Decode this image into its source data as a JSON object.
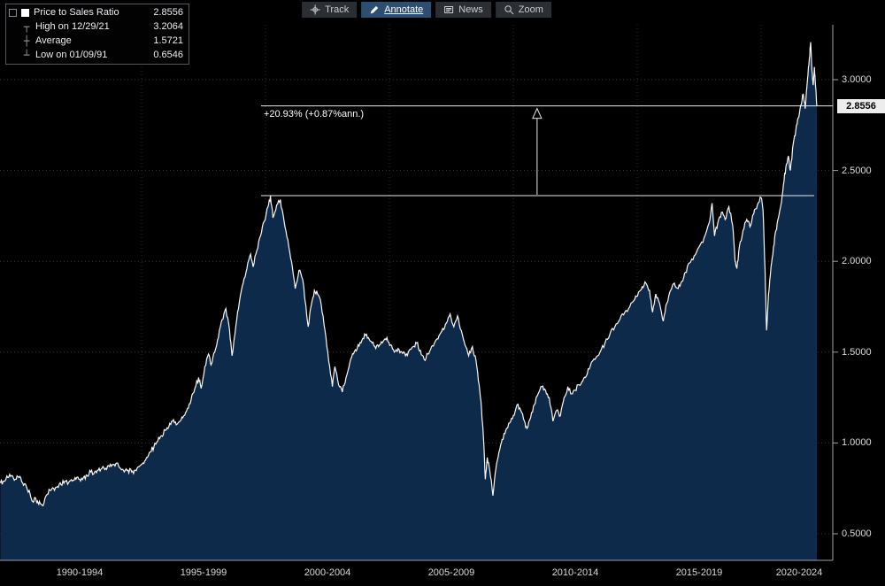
{
  "toolbar": {
    "buttons": [
      {
        "label": "Track"
      },
      {
        "label": "Annotate",
        "selected": true
      },
      {
        "label": "News"
      },
      {
        "label": "Zoom"
      }
    ]
  },
  "legend": {
    "rows": [
      {
        "marker": "swatch",
        "label": "Price to Sales Ratio",
        "value": "2.8556"
      },
      {
        "marker": "┬",
        "label": "High on 12/29/21",
        "value": "3.2064"
      },
      {
        "marker": "┼",
        "label": "Average",
        "value": "1.5721"
      },
      {
        "marker": "┴",
        "label": "Low on 01/09/91",
        "value": "0.6546"
      }
    ]
  },
  "chart_data": {
    "type": "area",
    "title": "Price to Sales Ratio",
    "series_name": "Price to Sales Ratio",
    "last": 2.8556,
    "last_label": "2.8556",
    "high": {
      "date": "12/29/21",
      "value": 3.2064
    },
    "average": 1.5721,
    "low": {
      "date": "01/09/91",
      "value": 0.6546
    },
    "xlabel": "",
    "ylabel": "",
    "grid": "dotted",
    "legend_position": "top-left",
    "ylim": [
      0.5,
      3.0
    ],
    "yticks": [
      0.5,
      1.0,
      1.5,
      2.0,
      2.5,
      3.0
    ],
    "ytick_labels": [
      "0.5000",
      "1.0000",
      "1.5000",
      "2.0000",
      "2.5000",
      "3.0000"
    ],
    "xtick_labels": [
      "1990-1994",
      "1995-1999",
      "2000-2004",
      "2005-2009",
      "2010-2014",
      "2015-2019",
      "2020-2024"
    ],
    "xtick_centers": [
      1992.5,
      1997.5,
      2002.5,
      2007.5,
      2012.5,
      2017.5,
      2022.5
    ],
    "vgrid_years": [
      1995,
      2000,
      2005,
      2010,
      2015,
      2020
    ],
    "annotation": {
      "text": "+20.93% (+0.87%ann.)",
      "from_value": 2.3614,
      "to_value": 2.8556,
      "line_start_year": 1999.82,
      "top_line_end_year": 2022.89,
      "bottom_line_end_year": 2022.14,
      "arrow_year": 2010.96
    },
    "points": [
      [
        1989.3,
        0.78
      ],
      [
        1989.45,
        0.79
      ],
      [
        1989.6,
        0.81
      ],
      [
        1989.75,
        0.82
      ],
      [
        1989.9,
        0.8
      ],
      [
        1990.05,
        0.81
      ],
      [
        1990.2,
        0.78
      ],
      [
        1990.35,
        0.76
      ],
      [
        1990.5,
        0.72
      ],
      [
        1990.6,
        0.68
      ],
      [
        1990.7,
        0.7
      ],
      [
        1990.8,
        0.68
      ],
      [
        1990.9,
        0.67
      ],
      [
        1991.03,
        0.655
      ],
      [
        1991.15,
        0.71
      ],
      [
        1991.3,
        0.74
      ],
      [
        1991.45,
        0.75
      ],
      [
        1991.6,
        0.76
      ],
      [
        1991.75,
        0.77
      ],
      [
        1991.9,
        0.79
      ],
      [
        1992.05,
        0.78
      ],
      [
        1992.2,
        0.79
      ],
      [
        1992.35,
        0.8
      ],
      [
        1992.5,
        0.8
      ],
      [
        1992.65,
        0.81
      ],
      [
        1992.8,
        0.82
      ],
      [
        1992.95,
        0.84
      ],
      [
        1993.1,
        0.84
      ],
      [
        1993.25,
        0.85
      ],
      [
        1993.4,
        0.86
      ],
      [
        1993.55,
        0.86
      ],
      [
        1993.7,
        0.87
      ],
      [
        1993.85,
        0.88
      ],
      [
        1994.0,
        0.89
      ],
      [
        1994.15,
        0.86
      ],
      [
        1994.3,
        0.84
      ],
      [
        1994.45,
        0.85
      ],
      [
        1994.6,
        0.84
      ],
      [
        1994.75,
        0.85
      ],
      [
        1994.9,
        0.87
      ],
      [
        1995.05,
        0.89
      ],
      [
        1995.2,
        0.92
      ],
      [
        1995.35,
        0.95
      ],
      [
        1995.5,
        0.98
      ],
      [
        1995.65,
        1.01
      ],
      [
        1995.8,
        1.04
      ],
      [
        1995.95,
        1.07
      ],
      [
        1996.1,
        1.09
      ],
      [
        1996.25,
        1.12
      ],
      [
        1996.4,
        1.1
      ],
      [
        1996.55,
        1.12
      ],
      [
        1996.7,
        1.15
      ],
      [
        1996.85,
        1.19
      ],
      [
        1997.0,
        1.24
      ],
      [
        1997.15,
        1.3
      ],
      [
        1997.3,
        1.36
      ],
      [
        1997.4,
        1.3
      ],
      [
        1997.55,
        1.42
      ],
      [
        1997.7,
        1.49
      ],
      [
        1997.8,
        1.43
      ],
      [
        1997.95,
        1.5
      ],
      [
        1998.1,
        1.58
      ],
      [
        1998.25,
        1.68
      ],
      [
        1998.4,
        1.74
      ],
      [
        1998.55,
        1.62
      ],
      [
        1998.65,
        1.48
      ],
      [
        1998.8,
        1.64
      ],
      [
        1998.95,
        1.78
      ],
      [
        1999.1,
        1.88
      ],
      [
        1999.25,
        1.96
      ],
      [
        1999.4,
        2.04
      ],
      [
        1999.5,
        1.97
      ],
      [
        1999.65,
        2.06
      ],
      [
        1999.8,
        2.14
      ],
      [
        1999.95,
        2.22
      ],
      [
        2000.1,
        2.3
      ],
      [
        2000.2,
        2.36
      ],
      [
        2000.3,
        2.24
      ],
      [
        2000.45,
        2.31
      ],
      [
        2000.6,
        2.34
      ],
      [
        2000.75,
        2.22
      ],
      [
        2000.9,
        2.12
      ],
      [
        2001.05,
        2.0
      ],
      [
        2001.2,
        1.85
      ],
      [
        2001.35,
        1.95
      ],
      [
        2001.5,
        1.9
      ],
      [
        2001.6,
        1.78
      ],
      [
        2001.72,
        1.64
      ],
      [
        2001.85,
        1.76
      ],
      [
        2001.97,
        1.84
      ],
      [
        2002.1,
        1.82
      ],
      [
        2002.25,
        1.76
      ],
      [
        2002.4,
        1.62
      ],
      [
        2002.55,
        1.45
      ],
      [
        2002.7,
        1.31
      ],
      [
        2002.8,
        1.42
      ],
      [
        2002.95,
        1.32
      ],
      [
        2003.1,
        1.28
      ],
      [
        2003.25,
        1.36
      ],
      [
        2003.4,
        1.44
      ],
      [
        2003.55,
        1.49
      ],
      [
        2003.7,
        1.52
      ],
      [
        2003.85,
        1.55
      ],
      [
        2004.0,
        1.6
      ],
      [
        2004.15,
        1.58
      ],
      [
        2004.3,
        1.55
      ],
      [
        2004.45,
        1.52
      ],
      [
        2004.6,
        1.54
      ],
      [
        2004.75,
        1.56
      ],
      [
        2004.9,
        1.58
      ],
      [
        2005.05,
        1.54
      ],
      [
        2005.2,
        1.5
      ],
      [
        2005.35,
        1.52
      ],
      [
        2005.5,
        1.5
      ],
      [
        2005.65,
        1.48
      ],
      [
        2005.8,
        1.51
      ],
      [
        2005.95,
        1.53
      ],
      [
        2006.1,
        1.55
      ],
      [
        2006.25,
        1.51
      ],
      [
        2006.4,
        1.46
      ],
      [
        2006.55,
        1.49
      ],
      [
        2006.7,
        1.53
      ],
      [
        2006.85,
        1.56
      ],
      [
        2007.0,
        1.59
      ],
      [
        2007.15,
        1.63
      ],
      [
        2007.3,
        1.66
      ],
      [
        2007.45,
        1.71
      ],
      [
        2007.6,
        1.64
      ],
      [
        2007.75,
        1.7
      ],
      [
        2007.9,
        1.62
      ],
      [
        2008.05,
        1.54
      ],
      [
        2008.2,
        1.48
      ],
      [
        2008.35,
        1.53
      ],
      [
        2008.5,
        1.45
      ],
      [
        2008.62,
        1.32
      ],
      [
        2008.72,
        1.18
      ],
      [
        2008.8,
        1.02
      ],
      [
        2008.87,
        0.8
      ],
      [
        2008.95,
        0.92
      ],
      [
        2009.05,
        0.85
      ],
      [
        2009.18,
        0.71
      ],
      [
        2009.3,
        0.86
      ],
      [
        2009.42,
        0.95
      ],
      [
        2009.55,
        1.02
      ],
      [
        2009.7,
        1.07
      ],
      [
        2009.85,
        1.11
      ],
      [
        2010.0,
        1.15
      ],
      [
        2010.15,
        1.21
      ],
      [
        2010.3,
        1.18
      ],
      [
        2010.45,
        1.12
      ],
      [
        2010.55,
        1.08
      ],
      [
        2010.7,
        1.14
      ],
      [
        2010.85,
        1.21
      ],
      [
        2011.0,
        1.27
      ],
      [
        2011.15,
        1.31
      ],
      [
        2011.3,
        1.29
      ],
      [
        2011.45,
        1.25
      ],
      [
        2011.6,
        1.12
      ],
      [
        2011.75,
        1.18
      ],
      [
        2011.9,
        1.15
      ],
      [
        2012.05,
        1.25
      ],
      [
        2012.2,
        1.31
      ],
      [
        2012.35,
        1.27
      ],
      [
        2012.5,
        1.29
      ],
      [
        2012.65,
        1.32
      ],
      [
        2012.8,
        1.34
      ],
      [
        2012.95,
        1.37
      ],
      [
        2013.1,
        1.42
      ],
      [
        2013.3,
        1.46
      ],
      [
        2013.5,
        1.5
      ],
      [
        2013.7,
        1.55
      ],
      [
        2013.9,
        1.6
      ],
      [
        2014.1,
        1.64
      ],
      [
        2014.3,
        1.68
      ],
      [
        2014.5,
        1.72
      ],
      [
        2014.7,
        1.75
      ],
      [
        2014.9,
        1.79
      ],
      [
        2015.05,
        1.83
      ],
      [
        2015.2,
        1.86
      ],
      [
        2015.35,
        1.88
      ],
      [
        2015.5,
        1.84
      ],
      [
        2015.62,
        1.72
      ],
      [
        2015.75,
        1.82
      ],
      [
        2015.9,
        1.77
      ],
      [
        2016.05,
        1.67
      ],
      [
        2016.2,
        1.77
      ],
      [
        2016.35,
        1.84
      ],
      [
        2016.5,
        1.88
      ],
      [
        2016.65,
        1.85
      ],
      [
        2016.8,
        1.89
      ],
      [
        2016.95,
        1.94
      ],
      [
        2017.1,
        1.99
      ],
      [
        2017.3,
        2.03
      ],
      [
        2017.5,
        2.08
      ],
      [
        2017.7,
        2.13
      ],
      [
        2017.9,
        2.21
      ],
      [
        2018.02,
        2.32
      ],
      [
        2018.12,
        2.14
      ],
      [
        2018.25,
        2.21
      ],
      [
        2018.4,
        2.27
      ],
      [
        2018.55,
        2.23
      ],
      [
        2018.7,
        2.3
      ],
      [
        2018.85,
        2.2
      ],
      [
        2018.95,
        2.0
      ],
      [
        2019.02,
        1.96
      ],
      [
        2019.12,
        2.08
      ],
      [
        2019.27,
        2.17
      ],
      [
        2019.42,
        2.23
      ],
      [
        2019.55,
        2.19
      ],
      [
        2019.7,
        2.26
      ],
      [
        2019.85,
        2.31
      ],
      [
        2020.0,
        2.35
      ],
      [
        2020.08,
        2.28
      ],
      [
        2020.16,
        1.95
      ],
      [
        2020.22,
        1.62
      ],
      [
        2020.3,
        1.82
      ],
      [
        2020.4,
        1.97
      ],
      [
        2020.5,
        2.08
      ],
      [
        2020.6,
        2.17
      ],
      [
        2020.7,
        2.24
      ],
      [
        2020.8,
        2.31
      ],
      [
        2020.9,
        2.42
      ],
      [
        2021.0,
        2.52
      ],
      [
        2021.1,
        2.58
      ],
      [
        2021.18,
        2.5
      ],
      [
        2021.3,
        2.65
      ],
      [
        2021.4,
        2.72
      ],
      [
        2021.5,
        2.79
      ],
      [
        2021.6,
        2.86
      ],
      [
        2021.7,
        2.92
      ],
      [
        2021.78,
        2.84
      ],
      [
        2021.87,
        3.0
      ],
      [
        2021.95,
        3.12
      ],
      [
        2022.0,
        3.2064
      ],
      [
        2022.05,
        3.05
      ],
      [
        2022.1,
        2.97
      ],
      [
        2022.15,
        3.07
      ],
      [
        2022.2,
        2.96
      ],
      [
        2022.25,
        2.8556
      ]
    ]
  }
}
